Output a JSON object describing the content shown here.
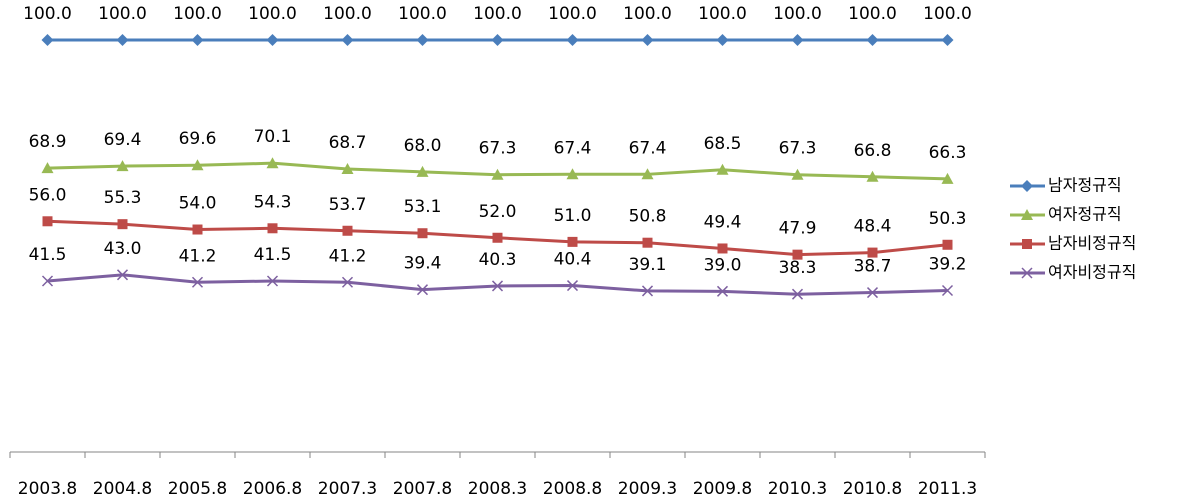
{
  "chart_data": {
    "type": "line",
    "categories": [
      "2003.8",
      "2004.8",
      "2005.8",
      "2006.8",
      "2007.3",
      "2007.8",
      "2008.3",
      "2008.8",
      "2009.3",
      "2009.8",
      "2010.3",
      "2010.8",
      "2011.3"
    ],
    "ylim": [
      0,
      100
    ],
    "legend": "right",
    "series": [
      {
        "name": "남자정규직",
        "color": "#4a7ebb",
        "marker": "diamond",
        "values": [
          100,
          100,
          100,
          100,
          100,
          100,
          100,
          100,
          100,
          100,
          100,
          100,
          100
        ],
        "value_labels": [
          "100.0",
          "100.0",
          "100.0",
          "100.0",
          "100.0",
          "100.0",
          "100.0",
          "100.0",
          "100.0",
          "100.0",
          "100.0",
          "100.0",
          "100.0"
        ]
      },
      {
        "name": "여자정규직",
        "color": "#98b954",
        "marker": "triangle",
        "values": [
          68.9,
          69.4,
          69.6,
          70.1,
          68.7,
          68,
          67.3,
          67.4,
          67.4,
          68.5,
          67.3,
          66.8,
          66.3
        ],
        "value_labels": [
          "68.9",
          "69.4",
          "69.6",
          "70.1",
          "68.7",
          "68.0",
          "67.3",
          "67.4",
          "67.4",
          "68.5",
          "67.3",
          "66.8",
          "66.3"
        ]
      },
      {
        "name": "남자비정규직",
        "color": "#be4b48",
        "marker": "square",
        "values": [
          56,
          55.3,
          54,
          54.3,
          53.7,
          53.1,
          52,
          51,
          50.8,
          49.4,
          47.9,
          48.4,
          50.3
        ],
        "value_labels": [
          "56.0",
          "55.3",
          "54.0",
          "54.3",
          "53.7",
          "53.1",
          "52.0",
          "51.0",
          "50.8",
          "49.4",
          "47.9",
          "48.4",
          "50.3"
        ]
      },
      {
        "name": "여자비정규직",
        "color": "#7d60a0",
        "marker": "x",
        "values": [
          41.5,
          43,
          41.2,
          41.5,
          41.2,
          39.4,
          40.3,
          40.4,
          39.1,
          39,
          38.3,
          38.7,
          39.2
        ],
        "value_labels": [
          "41.5",
          "43.0",
          "41.2",
          "41.5",
          "41.2",
          "39.4",
          "40.3",
          "40.4",
          "39.1",
          "39.0",
          "38.3",
          "38.7",
          "39.2"
        ]
      }
    ]
  }
}
